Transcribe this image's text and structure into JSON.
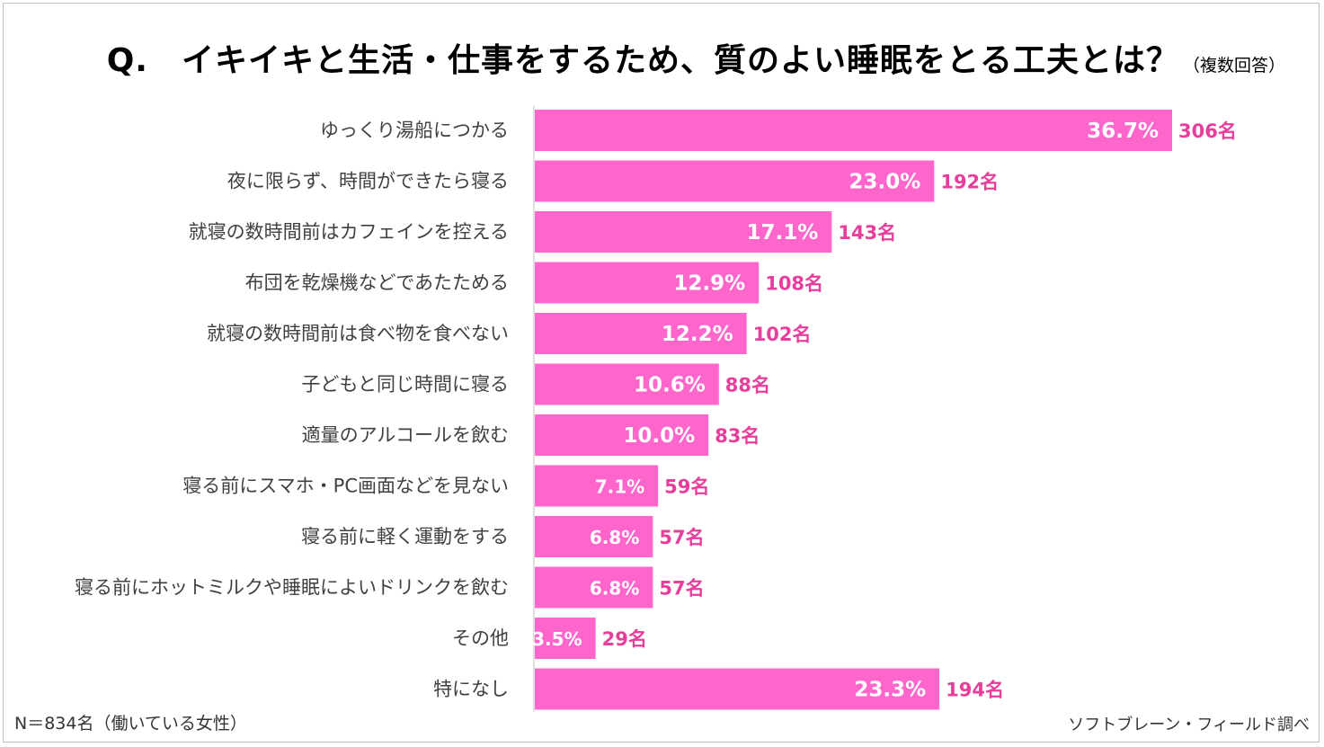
{
  "title": "Q.　イキイキと生活・仕事をするため、質のよい睡眠をとる工夫とは？",
  "title_note": "（複数回答）",
  "sample_note": "N＝834名（働いている女性）",
  "source_note": "ソフトブレーン・フィールド調べ",
  "colors": {
    "bar": "#ff66cc",
    "count_label": "#e83e9b",
    "bar_label": "#ffffff",
    "category_label": "#404040",
    "axis": "#bfbfbf"
  },
  "chart_data": {
    "type": "bar",
    "orientation": "horizontal",
    "categories": [
      "ゆっくり湯船につかる",
      "夜に限らず、時間ができたら寝る",
      "就寝の数時間前はカフェインを控える",
      "布団を乾燥機などであたためる",
      "就寝の数時間前は食べ物を食べない",
      "子どもと同じ時間に寝る",
      "適量のアルコールを飲む",
      "寝る前にスマホ・PC画面などを見ない",
      "寝る前に軽く運動をする",
      "寝る前にホットミルクや睡眠によいドリンクを飲む",
      "その他",
      "特になし"
    ],
    "values": [
      36.7,
      23.0,
      17.1,
      12.9,
      12.2,
      10.6,
      10.0,
      7.1,
      6.8,
      6.8,
      3.5,
      23.3
    ],
    "value_labels": [
      "36.7%",
      "23.0%",
      "17.1%",
      "12.9%",
      "12.2%",
      "10.6%",
      "10.0%",
      "7.1%",
      "6.8%",
      "6.8%",
      "3.5%",
      "23.3%"
    ],
    "count_labels": [
      "306名",
      "192名",
      "143名",
      "108名",
      "102名",
      "88名",
      "83名",
      "59名",
      "57名",
      "57名",
      "29名",
      "194名"
    ],
    "unit": "%",
    "xlim": [
      0,
      40
    ],
    "grid": false,
    "legend": "none"
  }
}
